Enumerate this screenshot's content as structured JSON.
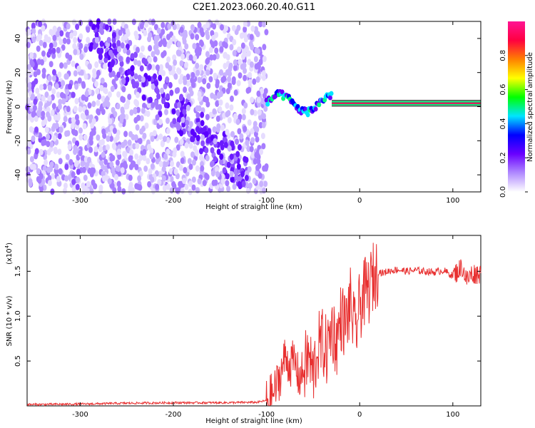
{
  "figure": {
    "title": "C2E1.2023.060.20.40.G11"
  },
  "chart_data": [
    {
      "type": "heatmap",
      "panel": "top",
      "xlabel": "Height of straight line (km)",
      "ylabel": "Frequency (Hz)",
      "xlim": [
        -357,
        130
      ],
      "ylim": [
        -50,
        50
      ],
      "xticks": [
        -300,
        -200,
        -100,
        0,
        100
      ],
      "yticks": [
        -40,
        -20,
        0,
        20,
        40
      ],
      "colorbar": {
        "label": "Normalized spectral amplitude",
        "range": [
          0.0,
          1.0
        ],
        "ticks": [
          0.0,
          0.2,
          0.4,
          0.6,
          0.8
        ],
        "colormap": [
          "#ffffff",
          "#b08aff",
          "#6a00ff",
          "#0000ff",
          "#00e5ff",
          "#00ff00",
          "#ffff00",
          "#ff8000",
          "#ff0040",
          "#ff1493"
        ]
      },
      "features": {
        "noise_region_x": [
          -357,
          -100
        ],
        "diagonal_streak": {
          "from": [
            -260,
            30
          ],
          "to": [
            -160,
            -20
          ]
        },
        "spectral_line_freq": 2,
        "spectral_line_x": [
          -30,
          130
        ],
        "wavy_segment_x": [
          -100,
          -30
        ]
      },
      "grid": false
    },
    {
      "type": "line",
      "panel": "bottom",
      "xlabel": "Height of straight line (km)",
      "ylabel": "SNR (10 * v/v)",
      "multiplier_label": "(x10",
      "multiplier_exponent": "4",
      "xlim": [
        -357,
        130
      ],
      "ylim": [
        0,
        19000
      ],
      "xticks": [
        -300,
        -200,
        -100,
        0,
        100
      ],
      "yticks": [
        5000,
        10000,
        15000
      ],
      "ytick_labels": [
        "0.5",
        "1.0",
        "1.5"
      ],
      "color": "#e83030",
      "series": [
        {
          "x": [
            -357,
            -300,
            -250,
            -200,
            -150,
            -110,
            -100,
            -92,
            -85,
            -80,
            -75,
            -70,
            -65,
            -60,
            -55,
            -50,
            -45,
            -40,
            -35,
            -30,
            -25,
            -20,
            -15,
            -10,
            -5,
            0,
            5,
            10,
            15,
            20,
            25,
            30,
            40,
            50,
            60,
            70,
            80,
            90,
            100,
            110,
            115,
            120,
            130
          ],
          "y": [
            150,
            200,
            300,
            350,
            350,
            400,
            600,
            1500,
            3500,
            5500,
            4500,
            5000,
            3000,
            4000,
            5500,
            3500,
            6500,
            7000,
            6000,
            9000,
            7000,
            10000,
            9000,
            11500,
            8000,
            11000,
            12500,
            13000,
            14500,
            15000,
            14800,
            15000,
            15200,
            15000,
            15100,
            15000,
            14900,
            15100,
            14500,
            15500,
            14000,
            14700,
            14800
          ]
        }
      ],
      "grid": false
    }
  ]
}
